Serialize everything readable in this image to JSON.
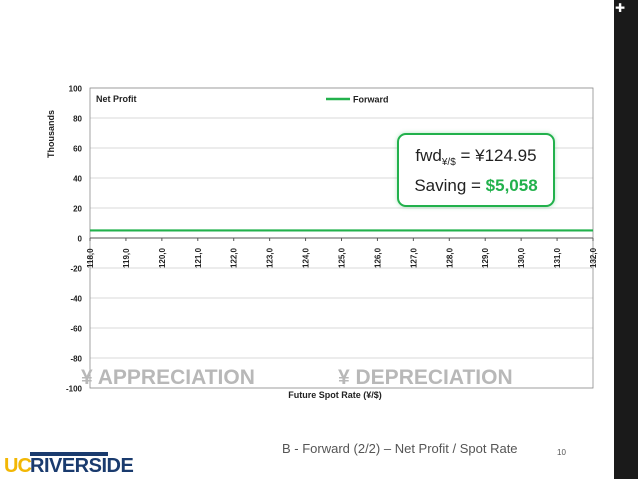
{
  "slide": {
    "footer": "B - Forward (2/2) – Net Profit / Spot Rate",
    "page_number": "10",
    "corner_mark": "✚",
    "logo_uc": "UC",
    "logo_riverside": "RIVERSIDE"
  },
  "callout": {
    "fwd_prefix": "fwd",
    "fwd_sub": "¥/$",
    "fwd_value": " = ¥124.95",
    "saving_prefix": "Saving = ",
    "saving_value": "$5,058"
  },
  "overlays": {
    "appreciation": "¥ APPRECIATION",
    "depreciation": "¥ DEPRECIATION"
  },
  "colors": {
    "series": "#22b14c",
    "overlay_text": "#b8b8b8",
    "grid": "#d9d9d9",
    "sidebar": "#1a1a1a"
  },
  "chart_data": {
    "type": "line",
    "title": "Net Profit",
    "xlabel": "Future Spot Rate (¥/$)",
    "ylabel": "Thousands",
    "xlim": [
      118,
      132
    ],
    "ylim": [
      -100,
      100
    ],
    "x_ticks": [
      "118,0",
      "119,0",
      "120,0",
      "121,0",
      "122,0",
      "123,0",
      "124,0",
      "125,0",
      "126,0",
      "127,0",
      "128,0",
      "129,0",
      "130,0",
      "131,0",
      "132,0"
    ],
    "y_ticks": [
      100,
      80,
      60,
      40,
      20,
      0,
      -20,
      -40,
      -60,
      -80,
      -100
    ],
    "grid": "horizontal",
    "legend": "top-center",
    "series": [
      {
        "name": "Forward",
        "x": [
          118,
          132
        ],
        "y": [
          5.058,
          5.058
        ]
      }
    ]
  }
}
